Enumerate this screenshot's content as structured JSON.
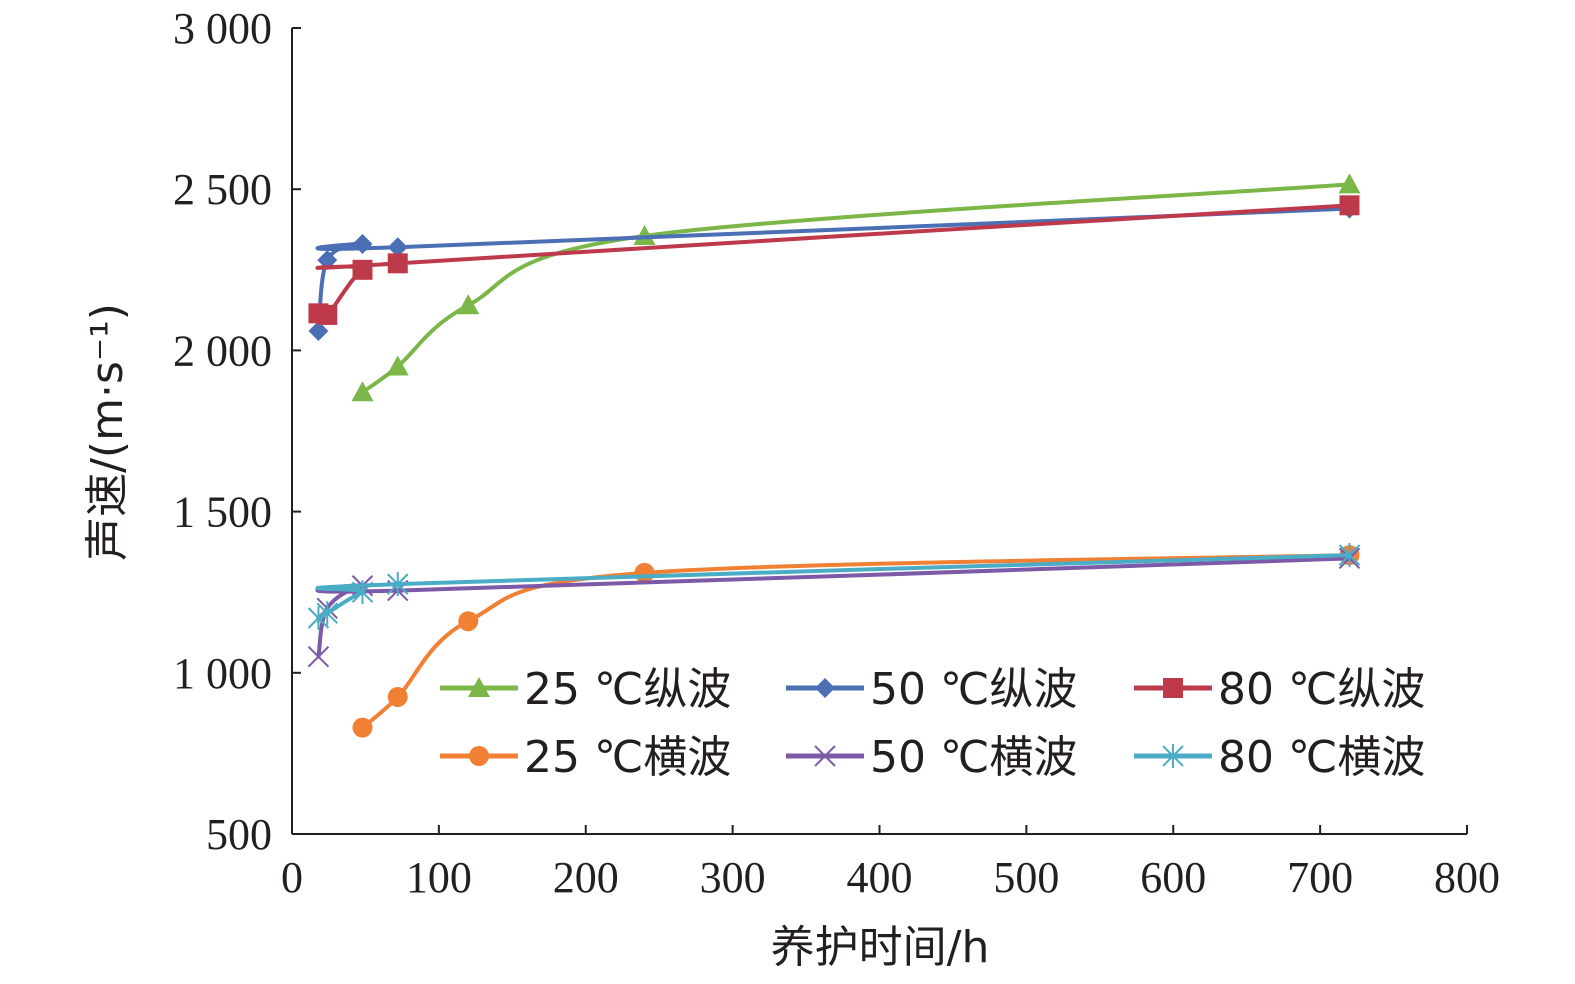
{
  "chart_data": {
    "type": "line",
    "title": "",
    "xlabel": "养护时间/h",
    "ylabel": "声速/(m·s⁻¹)",
    "xlim": [
      0,
      800
    ],
    "ylim": [
      500,
      3000
    ],
    "xticks": [
      0,
      100,
      200,
      300,
      400,
      500,
      600,
      700,
      800
    ],
    "xtick_labels": [
      "0",
      "100",
      "200",
      "300",
      "400",
      "500",
      "600",
      "700",
      "800"
    ],
    "yticks": [
      500,
      1000,
      1500,
      2000,
      2500,
      3000
    ],
    "ytick_labels": [
      "500",
      "1 000",
      "1 500",
      "2 000",
      "2 500",
      "3 000"
    ],
    "grid": false,
    "legend_position": "lower-right",
    "series": [
      {
        "name": "25 ℃纵波",
        "color": "#7ab648",
        "marker": "triangle",
        "x": [
          48,
          72,
          120,
          240,
          720
        ],
        "y": [
          1870,
          1950,
          2140,
          2355,
          2515
        ]
      },
      {
        "name": "50 ℃纵波",
        "color": "#4a6fb5",
        "marker": "diamond",
        "x": [
          18,
          24,
          48,
          72,
          720
        ],
        "y": [
          2060,
          2280,
          2330,
          2320,
          2440
        ]
      },
      {
        "name": "80 ℃纵波",
        "color": "#be3a4a",
        "marker": "square",
        "x": [
          18,
          24,
          48,
          72,
          720
        ],
        "y": [
          2115,
          2110,
          2250,
          2270,
          2450
        ]
      },
      {
        "name": "25 ℃横波",
        "color": "#f08134",
        "marker": "circle",
        "x": [
          48,
          72,
          120,
          240,
          720
        ],
        "y": [
          830,
          925,
          1160,
          1310,
          1365
        ]
      },
      {
        "name": "50 ℃横波",
        "color": "#7d5aa8",
        "marker": "x",
        "x": [
          18,
          24,
          48,
          72,
          720
        ],
        "y": [
          1050,
          1200,
          1270,
          1255,
          1355
        ]
      },
      {
        "name": "80 ℃横波",
        "color": "#4bacc6",
        "marker": "asterisk",
        "x": [
          18,
          24,
          48,
          72,
          720
        ],
        "y": [
          1170,
          1185,
          1250,
          1275,
          1365
        ]
      }
    ]
  }
}
